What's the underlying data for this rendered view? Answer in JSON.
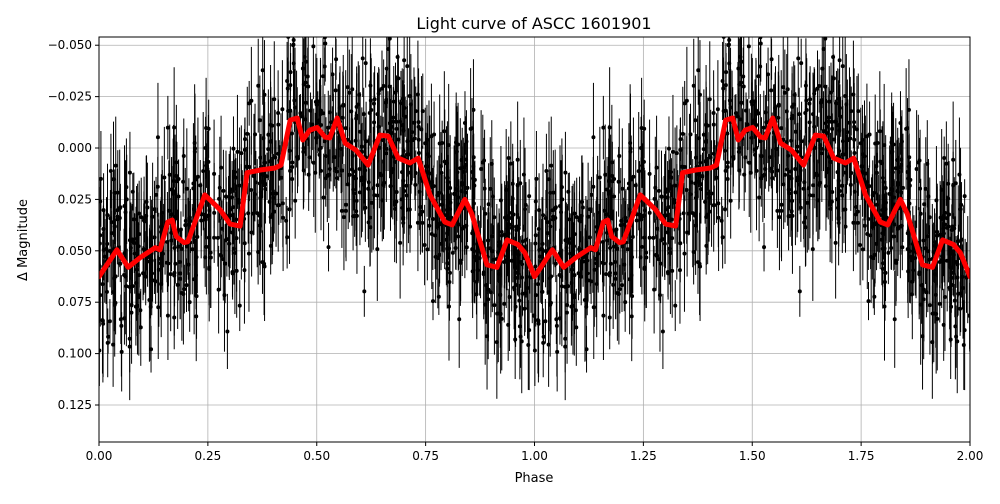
{
  "chart_data": {
    "type": "scatter",
    "title": "Light curve of ASCC 1601901",
    "xlabel": "Phase",
    "ylabel": "Δ Magnitude",
    "xlim": [
      0,
      2
    ],
    "ylim": [
      -0.054,
      0.143
    ],
    "y_inverted": true,
    "grid": true,
    "xticks": [
      "0.00",
      "0.25",
      "0.50",
      "0.75",
      "1.00",
      "1.25",
      "1.50",
      "1.75",
      "2.00"
    ],
    "xtick_values": [
      0,
      0.25,
      0.5,
      0.75,
      1,
      1.25,
      1.5,
      1.75,
      2
    ],
    "yticks": [
      "−0.050",
      "−0.025",
      "0.000",
      "0.025",
      "0.050",
      "0.075",
      "0.100",
      "0.125"
    ],
    "ytick_values": [
      -0.05,
      -0.025,
      0,
      0.025,
      0.05,
      0.075,
      0.1,
      0.125
    ],
    "series": [
      {
        "kind": "binned-model",
        "color": "#ff0000",
        "period_repeated": true,
        "phase": [
          0.0,
          0.041,
          0.067,
          0.094,
          0.129,
          0.14,
          0.158,
          0.168,
          0.177,
          0.195,
          0.204,
          0.243,
          0.278,
          0.301,
          0.324,
          0.34,
          0.37,
          0.404,
          0.418,
          0.439,
          0.455,
          0.468,
          0.484,
          0.501,
          0.519,
          0.53,
          0.547,
          0.565,
          0.59,
          0.618,
          0.645,
          0.664,
          0.687,
          0.714,
          0.733,
          0.76,
          0.794,
          0.811,
          0.84,
          0.856,
          0.891,
          0.914,
          0.937,
          0.962,
          0.978,
          1.0
        ],
        "mag": [
          0.0626,
          0.0495,
          0.058,
          0.0534,
          0.0485,
          0.0495,
          0.036,
          0.035,
          0.043,
          0.046,
          0.0456,
          0.0228,
          0.03,
          0.037,
          0.038,
          0.012,
          0.0107,
          0.0097,
          0.0083,
          -0.0136,
          -0.0146,
          -0.0039,
          -0.0087,
          -0.01,
          -0.0053,
          -0.0049,
          -0.0146,
          -0.0024,
          0.001,
          0.0083,
          -0.0063,
          -0.0058,
          0.0049,
          0.0073,
          0.0049,
          0.0228,
          0.036,
          0.0374,
          0.025,
          0.032,
          0.0568,
          0.058,
          0.0447,
          0.047,
          0.051,
          0.0626
        ]
      },
      {
        "kind": "observations-with-errorbars",
        "color": "#000000"
      }
    ]
  }
}
